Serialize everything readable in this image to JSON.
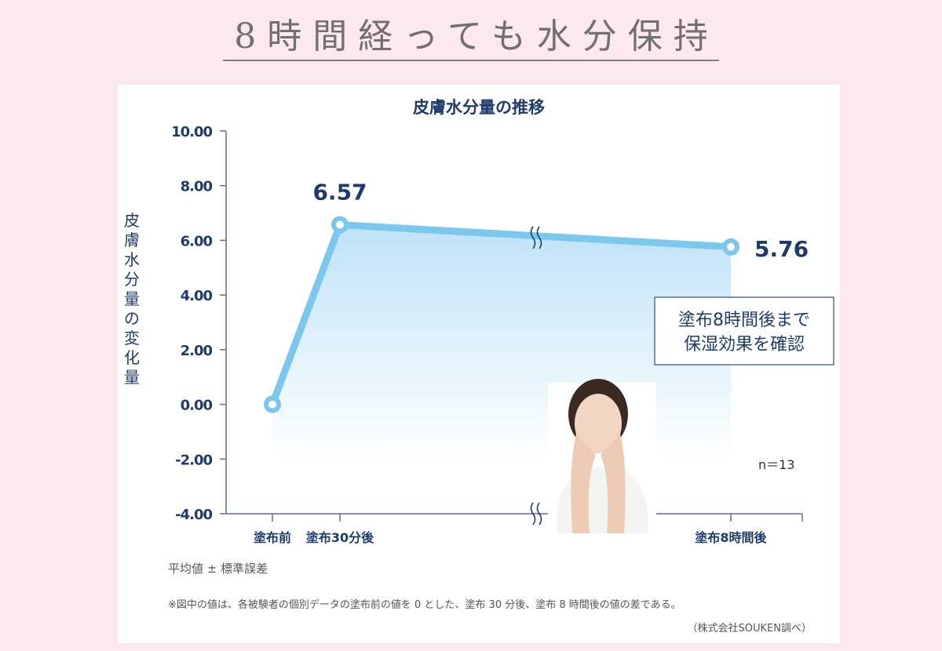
{
  "page_title": "8時間経っても水分保持",
  "chart_data": {
    "type": "line",
    "title": "皮膚水分量の推移",
    "ylabel": "皮膚水分量の変化量",
    "xlabel": "",
    "categories": [
      "塗布前",
      "塗布30分後",
      "塗布8時間後"
    ],
    "values": [
      0.0,
      6.57,
      5.76
    ],
    "data_labels": [
      "",
      "6.57",
      "5.76"
    ],
    "ylim": [
      -4,
      10
    ],
    "yticks": [
      "10.00",
      "8.00",
      "6.00",
      "4.00",
      "2.00",
      "0.00",
      "-2.00",
      "-4.00"
    ],
    "axis_break": true,
    "grid": false,
    "line_color": "#7cc7ee",
    "text_color": "#1f3b6e",
    "annotation": [
      "塗布8時間後まで",
      "保湿効果を確認"
    ],
    "sample_size": "n＝13"
  },
  "notes": {
    "stat": "平均値 ± 標準誤差",
    "footnote": "※図中の値は、各被験者の個別データの塗布前の値を 0 とした、塗布 30 分後、塗布 8 時間後の値の差である。",
    "source": "（株式会社SOUKEN調べ）"
  }
}
